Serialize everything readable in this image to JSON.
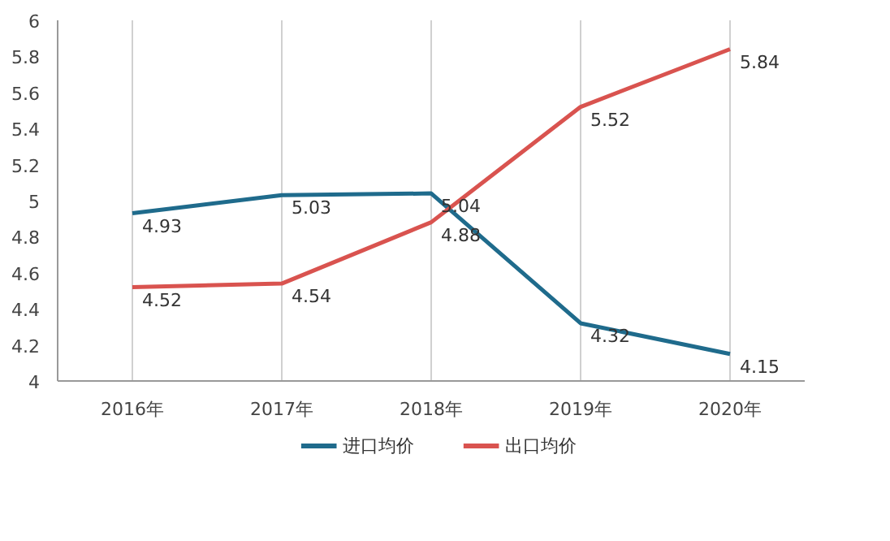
{
  "chart_data": {
    "type": "line",
    "categories": [
      "2016年",
      "2017年",
      "2018年",
      "2019年",
      "2020年"
    ],
    "series": [
      {
        "name": "进口均价",
        "color": "#1f6b8c",
        "values": [
          4.93,
          5.03,
          5.04,
          4.32,
          4.15
        ]
      },
      {
        "name": "出口均价",
        "color": "#d9534f",
        "values": [
          4.52,
          4.54,
          4.88,
          5.52,
          5.84
        ]
      }
    ],
    "ylim": [
      4,
      6
    ],
    "yticks": [
      4,
      4.2,
      4.4,
      4.6,
      4.8,
      5,
      5.2,
      5.4,
      5.6,
      5.8,
      6
    ],
    "grid": "x",
    "legend": "bottom",
    "data_labels": true,
    "marker": "none",
    "line_style": "solid"
  }
}
